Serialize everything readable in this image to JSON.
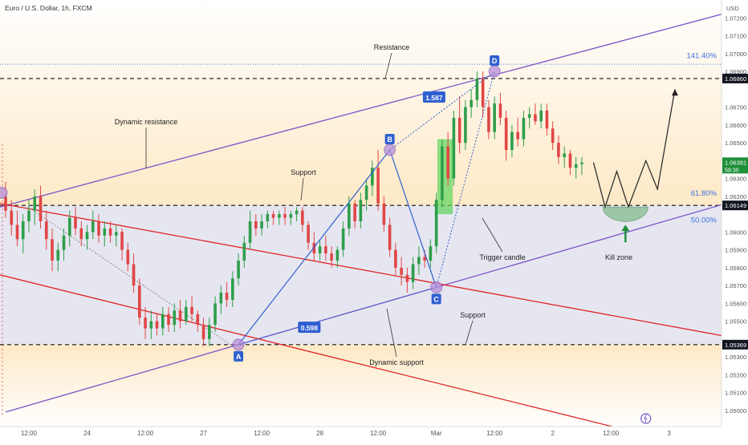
{
  "header": {
    "title": "Euro / U.S. Dollar, 1h, FXCM",
    "currency": "USD"
  },
  "colors": {
    "up": "#2e9e4a",
    "down": "#e04646",
    "purple_line": "#7b53c9",
    "red_line": "#e02424",
    "harmonic": "#2f5fd0",
    "fib_text": "#3d6fe0",
    "bg_top": "#fdeecd",
    "bg_band": "#e6e6f0"
  },
  "chart_data": {
    "type": "candlestick",
    "symbol": "EURUSD",
    "timeframe": "1h",
    "ylim": [
      1.0491,
      1.073
    ],
    "y_ticks": [
      1.05,
      1.051,
      1.052,
      1.053,
      1.054,
      1.055,
      1.056,
      1.057,
      1.058,
      1.059,
      1.06,
      1.061,
      1.062,
      1.063,
      1.064,
      1.065,
      1.066,
      1.067,
      1.068,
      1.069,
      1.07,
      1.071,
      1.072
    ],
    "y_tick_labels": [
      "1.05000",
      "1.05100",
      "1.05200",
      "1.05300",
      "1.05400",
      "1.05500",
      "1.05600",
      "1.05700",
      "1.05800",
      "1.05900",
      "1.06000",
      "1.06100",
      "1.06200",
      "1.06300",
      "1.06400",
      "1.06500",
      "1.06600",
      "1.06700",
      "1.06800",
      "1.06900",
      "1.07000",
      "1.07100",
      "1.07200"
    ],
    "hidden_tick_labels": [
      "1.06800",
      "1.06100",
      "1.05400",
      "1.06400"
    ],
    "x_ticks": [
      "12:00",
      "24",
      "12:00",
      "27",
      "12:00",
      "28",
      "12:00",
      "Mar",
      "12:00",
      "2",
      "12:00",
      "3"
    ],
    "x_range_bars": [
      0,
      123
    ],
    "x_tick_bars": [
      4,
      14,
      24,
      34,
      44,
      54,
      64,
      74,
      84,
      94,
      104,
      114
    ],
    "price_labels": [
      {
        "label": "1.06860",
        "value": 1.0686,
        "style": "dark"
      },
      {
        "label": "1.06149",
        "value": 1.06149,
        "style": "dark"
      },
      {
        "label": "1.05369",
        "value": 1.05369,
        "style": "dark"
      },
      {
        "label": "1.06391",
        "value": 1.06391,
        "style": "green",
        "countdown": "59:30"
      }
    ],
    "horizontal_levels": [
      {
        "value": 1.0686,
        "style": "dashed"
      },
      {
        "value": 1.06149,
        "style": "dashed"
      },
      {
        "value": 1.05369,
        "style": "dashed"
      },
      {
        "value": 1.0694,
        "style": "dotted-blue"
      }
    ],
    "fib_labels": [
      {
        "label": "141.40%",
        "value": 1.0696
      },
      {
        "label": "61.80%",
        "value": 1.0619
      },
      {
        "label": "50.00%",
        "value": 1.0604
      }
    ],
    "candles": [
      {
        "o": 1.062,
        "h": 1.0628,
        "l": 1.0608,
        "c": 1.0612
      },
      {
        "o": 1.0612,
        "h": 1.0618,
        "l": 1.0598,
        "c": 1.0604
      },
      {
        "o": 1.0604,
        "h": 1.0612,
        "l": 1.0592,
        "c": 1.0596
      },
      {
        "o": 1.0596,
        "h": 1.061,
        "l": 1.0588,
        "c": 1.0606
      },
      {
        "o": 1.0606,
        "h": 1.0618,
        "l": 1.06,
        "c": 1.0612
      },
      {
        "o": 1.0612,
        "h": 1.0624,
        "l": 1.0604,
        "c": 1.062
      },
      {
        "o": 1.062,
        "h": 1.0626,
        "l": 1.0602,
        "c": 1.0606
      },
      {
        "o": 1.0606,
        "h": 1.0612,
        "l": 1.059,
        "c": 1.0596
      },
      {
        "o": 1.0596,
        "h": 1.0602,
        "l": 1.0578,
        "c": 1.0584
      },
      {
        "o": 1.0584,
        "h": 1.0594,
        "l": 1.0578,
        "c": 1.059
      },
      {
        "o": 1.059,
        "h": 1.0602,
        "l": 1.0584,
        "c": 1.0598
      },
      {
        "o": 1.0598,
        "h": 1.0612,
        "l": 1.0592,
        "c": 1.0608
      },
      {
        "o": 1.0608,
        "h": 1.0614,
        "l": 1.0598,
        "c": 1.0602
      },
      {
        "o": 1.0602,
        "h": 1.0606,
        "l": 1.0592,
        "c": 1.0596
      },
      {
        "o": 1.0596,
        "h": 1.0604,
        "l": 1.059,
        "c": 1.06
      },
      {
        "o": 1.06,
        "h": 1.0612,
        "l": 1.0596,
        "c": 1.0606
      },
      {
        "o": 1.0606,
        "h": 1.061,
        "l": 1.0594,
        "c": 1.0598
      },
      {
        "o": 1.0598,
        "h": 1.0606,
        "l": 1.0592,
        "c": 1.0602
      },
      {
        "o": 1.0602,
        "h": 1.0606,
        "l": 1.0594,
        "c": 1.0598
      },
      {
        "o": 1.0598,
        "h": 1.0604,
        "l": 1.0592,
        "c": 1.06
      },
      {
        "o": 1.06,
        "h": 1.0602,
        "l": 1.0584,
        "c": 1.059
      },
      {
        "o": 1.059,
        "h": 1.0594,
        "l": 1.0578,
        "c": 1.0582
      },
      {
        "o": 1.0582,
        "h": 1.0588,
        "l": 1.0566,
        "c": 1.057
      },
      {
        "o": 1.057,
        "h": 1.0574,
        "l": 1.0548,
        "c": 1.0552
      },
      {
        "o": 1.0552,
        "h": 1.0558,
        "l": 1.054,
        "c": 1.0546
      },
      {
        "o": 1.0546,
        "h": 1.0556,
        "l": 1.054,
        "c": 1.055
      },
      {
        "o": 1.055,
        "h": 1.0554,
        "l": 1.0542,
        "c": 1.0546
      },
      {
        "o": 1.0546,
        "h": 1.0558,
        "l": 1.0542,
        "c": 1.0554
      },
      {
        "o": 1.0554,
        "h": 1.0558,
        "l": 1.0544,
        "c": 1.0548
      },
      {
        "o": 1.0548,
        "h": 1.056,
        "l": 1.0544,
        "c": 1.0556
      },
      {
        "o": 1.0556,
        "h": 1.0562,
        "l": 1.0546,
        "c": 1.055
      },
      {
        "o": 1.055,
        "h": 1.0562,
        "l": 1.0548,
        "c": 1.0558
      },
      {
        "o": 1.0558,
        "h": 1.0564,
        "l": 1.055,
        "c": 1.0554
      },
      {
        "o": 1.0554,
        "h": 1.0556,
        "l": 1.0544,
        "c": 1.0548
      },
      {
        "o": 1.0548,
        "h": 1.0552,
        "l": 1.0536,
        "c": 1.054
      },
      {
        "o": 1.054,
        "h": 1.0552,
        "l": 1.0536,
        "c": 1.0548
      },
      {
        "o": 1.0548,
        "h": 1.0564,
        "l": 1.0544,
        "c": 1.056
      },
      {
        "o": 1.056,
        "h": 1.057,
        "l": 1.0554,
        "c": 1.0566
      },
      {
        "o": 1.0566,
        "h": 1.0572,
        "l": 1.0558,
        "c": 1.0562
      },
      {
        "o": 1.0562,
        "h": 1.0578,
        "l": 1.0558,
        "c": 1.0574
      },
      {
        "o": 1.0574,
        "h": 1.0588,
        "l": 1.057,
        "c": 1.0584
      },
      {
        "o": 1.0584,
        "h": 1.0598,
        "l": 1.058,
        "c": 1.0594
      },
      {
        "o": 1.0594,
        "h": 1.0612,
        "l": 1.059,
        "c": 1.0606
      },
      {
        "o": 1.0606,
        "h": 1.061,
        "l": 1.0598,
        "c": 1.0602
      },
      {
        "o": 1.0602,
        "h": 1.061,
        "l": 1.0598,
        "c": 1.0606
      },
      {
        "o": 1.0606,
        "h": 1.0612,
        "l": 1.0602,
        "c": 1.061
      },
      {
        "o": 1.061,
        "h": 1.0612,
        "l": 1.0604,
        "c": 1.0608
      },
      {
        "o": 1.0608,
        "h": 1.0612,
        "l": 1.0604,
        "c": 1.061
      },
      {
        "o": 1.061,
        "h": 1.0614,
        "l": 1.0604,
        "c": 1.0608
      },
      {
        "o": 1.0608,
        "h": 1.0612,
        "l": 1.0604,
        "c": 1.061
      },
      {
        "o": 1.061,
        "h": 1.0614,
        "l": 1.0606,
        "c": 1.0612
      },
      {
        "o": 1.0612,
        "h": 1.0614,
        "l": 1.06,
        "c": 1.0604
      },
      {
        "o": 1.0604,
        "h": 1.0606,
        "l": 1.059,
        "c": 1.0594
      },
      {
        "o": 1.0594,
        "h": 1.06,
        "l": 1.0584,
        "c": 1.0588
      },
      {
        "o": 1.0588,
        "h": 1.0596,
        "l": 1.0584,
        "c": 1.0592
      },
      {
        "o": 1.0592,
        "h": 1.0598,
        "l": 1.0584,
        "c": 1.0588
      },
      {
        "o": 1.0588,
        "h": 1.0592,
        "l": 1.058,
        "c": 1.0584
      },
      {
        "o": 1.0584,
        "h": 1.0592,
        "l": 1.058,
        "c": 1.059
      },
      {
        "o": 1.059,
        "h": 1.0606,
        "l": 1.0586,
        "c": 1.0602
      },
      {
        "o": 1.0602,
        "h": 1.062,
        "l": 1.0598,
        "c": 1.0616
      },
      {
        "o": 1.0616,
        "h": 1.0618,
        "l": 1.0602,
        "c": 1.0606
      },
      {
        "o": 1.0606,
        "h": 1.0622,
        "l": 1.0602,
        "c": 1.0618
      },
      {
        "o": 1.0618,
        "h": 1.063,
        "l": 1.0612,
        "c": 1.0626
      },
      {
        "o": 1.0626,
        "h": 1.064,
        "l": 1.062,
        "c": 1.0636
      },
      {
        "o": 1.0636,
        "h": 1.0646,
        "l": 1.0612,
        "c": 1.0616
      },
      {
        "o": 1.0616,
        "h": 1.062,
        "l": 1.06,
        "c": 1.0604
      },
      {
        "o": 1.0604,
        "h": 1.0608,
        "l": 1.0586,
        "c": 1.059
      },
      {
        "o": 1.059,
        "h": 1.0594,
        "l": 1.0576,
        "c": 1.058
      },
      {
        "o": 1.058,
        "h": 1.0586,
        "l": 1.057,
        "c": 1.0576
      },
      {
        "o": 1.0576,
        "h": 1.058,
        "l": 1.0566,
        "c": 1.0572
      },
      {
        "o": 1.0572,
        "h": 1.0586,
        "l": 1.0568,
        "c": 1.0582
      },
      {
        "o": 1.0582,
        "h": 1.0592,
        "l": 1.0576,
        "c": 1.0586
      },
      {
        "o": 1.0586,
        "h": 1.059,
        "l": 1.058,
        "c": 1.0584
      },
      {
        "o": 1.0584,
        "h": 1.0596,
        "l": 1.058,
        "c": 1.0592
      },
      {
        "o": 1.0592,
        "h": 1.0622,
        "l": 1.0588,
        "c": 1.0618
      },
      {
        "o": 1.0618,
        "h": 1.0652,
        "l": 1.0614,
        "c": 1.0648
      },
      {
        "o": 1.0648,
        "h": 1.0656,
        "l": 1.0626,
        "c": 1.063
      },
      {
        "o": 1.063,
        "h": 1.0668,
        "l": 1.0626,
        "c": 1.0664
      },
      {
        "o": 1.0664,
        "h": 1.0676,
        "l": 1.0644,
        "c": 1.065
      },
      {
        "o": 1.065,
        "h": 1.0674,
        "l": 1.0646,
        "c": 1.067
      },
      {
        "o": 1.067,
        "h": 1.068,
        "l": 1.0664,
        "c": 1.0674
      },
      {
        "o": 1.0674,
        "h": 1.069,
        "l": 1.067,
        "c": 1.0686
      },
      {
        "o": 1.0686,
        "h": 1.069,
        "l": 1.0664,
        "c": 1.067
      },
      {
        "o": 1.067,
        "h": 1.0674,
        "l": 1.0652,
        "c": 1.0656
      },
      {
        "o": 1.0656,
        "h": 1.0676,
        "l": 1.0652,
        "c": 1.0672
      },
      {
        "o": 1.0672,
        "h": 1.0678,
        "l": 1.066,
        "c": 1.0664
      },
      {
        "o": 1.0664,
        "h": 1.0668,
        "l": 1.064,
        "c": 1.0646
      },
      {
        "o": 1.0646,
        "h": 1.066,
        "l": 1.0642,
        "c": 1.0656
      },
      {
        "o": 1.0656,
        "h": 1.0664,
        "l": 1.0648,
        "c": 1.0652
      },
      {
        "o": 1.0652,
        "h": 1.0668,
        "l": 1.0648,
        "c": 1.0664
      },
      {
        "o": 1.0664,
        "h": 1.067,
        "l": 1.0658,
        "c": 1.0666
      },
      {
        "o": 1.0666,
        "h": 1.0672,
        "l": 1.066,
        "c": 1.0662
      },
      {
        "o": 1.0662,
        "h": 1.0672,
        "l": 1.0658,
        "c": 1.0668
      },
      {
        "o": 1.0668,
        "h": 1.0672,
        "l": 1.0654,
        "c": 1.0658
      },
      {
        "o": 1.0658,
        "h": 1.0662,
        "l": 1.0646,
        "c": 1.065
      },
      {
        "o": 1.065,
        "h": 1.0654,
        "l": 1.0638,
        "c": 1.0642
      },
      {
        "o": 1.0642,
        "h": 1.0648,
        "l": 1.0636,
        "c": 1.0644
      },
      {
        "o": 1.0644,
        "h": 1.0646,
        "l": 1.0632,
        "c": 1.0636
      },
      {
        "o": 1.0636,
        "h": 1.0642,
        "l": 1.063,
        "c": 1.0638
      },
      {
        "o": 1.0638,
        "h": 1.0642,
        "l": 1.0632,
        "c": 1.0639
      }
    ],
    "forecast_path_bars": [
      [
        101,
        1.0639
      ],
      [
        103,
        1.0614
      ],
      [
        105,
        1.0634
      ],
      [
        107,
        1.0614
      ],
      [
        110,
        1.064
      ],
      [
        112,
        1.0624
      ],
      [
        115,
        1.068
      ]
    ],
    "harmonic_points": [
      {
        "label": "A",
        "bar": 40,
        "value": 1.05369
      },
      {
        "label": "B",
        "bar": 66,
        "value": 1.0646
      },
      {
        "label": "C",
        "bar": 74,
        "value": 1.0569
      },
      {
        "label": "D",
        "bar": 84,
        "value": 1.069
      }
    ],
    "ratio_labels": [
      {
        "label": "1.587"
      },
      {
        "label": "0.598"
      }
    ],
    "annotations": [
      "Resistance",
      "Dynamic resistance",
      "Support",
      "Dynamic support",
      "Support",
      "Trigger candle",
      "Kill zone"
    ]
  }
}
